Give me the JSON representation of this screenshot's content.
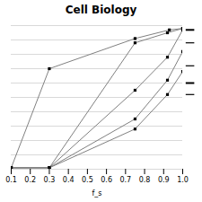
{
  "chart_data": {
    "type": "line",
    "title": "Cell Biology",
    "xlabel": "f_s",
    "xlim": [
      0.1,
      1.0
    ],
    "ylim": [
      0.0,
      1.0
    ],
    "xticks": [
      0.1,
      0.2,
      0.3,
      0.4,
      0.5,
      0.6,
      0.7,
      0.8,
      0.9,
      {
        "value": 1.0,
        "label": "1.0"
      }
    ],
    "yticks": [
      0.0,
      0.1,
      0.2,
      0.3,
      0.4,
      0.5,
      0.6,
      0.7,
      0.8,
      0.9,
      1.0
    ],
    "grid": true,
    "tick_labels": "x",
    "series": [
      {
        "color": "#808080",
        "marker": "square",
        "x": [
          0.1,
          0.3,
          0.75,
          0.93,
          1.0
        ],
        "values": [
          0.01,
          0.7,
          0.91,
          0.97,
          0.98
        ]
      },
      {
        "color": "#808080",
        "marker": "square",
        "x": [
          0.1,
          0.3,
          0.75,
          0.92,
          1.0
        ],
        "values": [
          0.01,
          0.01,
          0.88,
          0.95,
          0.98
        ]
      },
      {
        "color": "#808080",
        "marker": "square",
        "x": [
          0.1,
          0.3,
          0.75,
          0.92,
          1.0
        ],
        "values": [
          0.01,
          0.01,
          0.55,
          0.78,
          0.97
        ]
      },
      {
        "color": "#808080",
        "marker": "square",
        "x": [
          0.1,
          0.3,
          0.75,
          0.92,
          1.0
        ],
        "values": [
          0.01,
          0.01,
          0.35,
          0.62,
          0.82
        ]
      },
      {
        "color": "#808080",
        "marker": "square",
        "x": [
          0.1,
          0.3,
          0.75,
          0.92,
          1.0
        ],
        "values": [
          0.01,
          0.01,
          0.28,
          0.52,
          0.68
        ]
      }
    ],
    "legend_dashes": [
      {
        "y": 0.97,
        "line_style": "thick"
      },
      {
        "y": 0.88,
        "line_style": "thin"
      },
      {
        "y": 0.72,
        "line_style": "thin"
      },
      {
        "y": 0.6,
        "line_style": "thick"
      },
      {
        "y": 0.52,
        "line_style": "thin"
      }
    ]
  }
}
